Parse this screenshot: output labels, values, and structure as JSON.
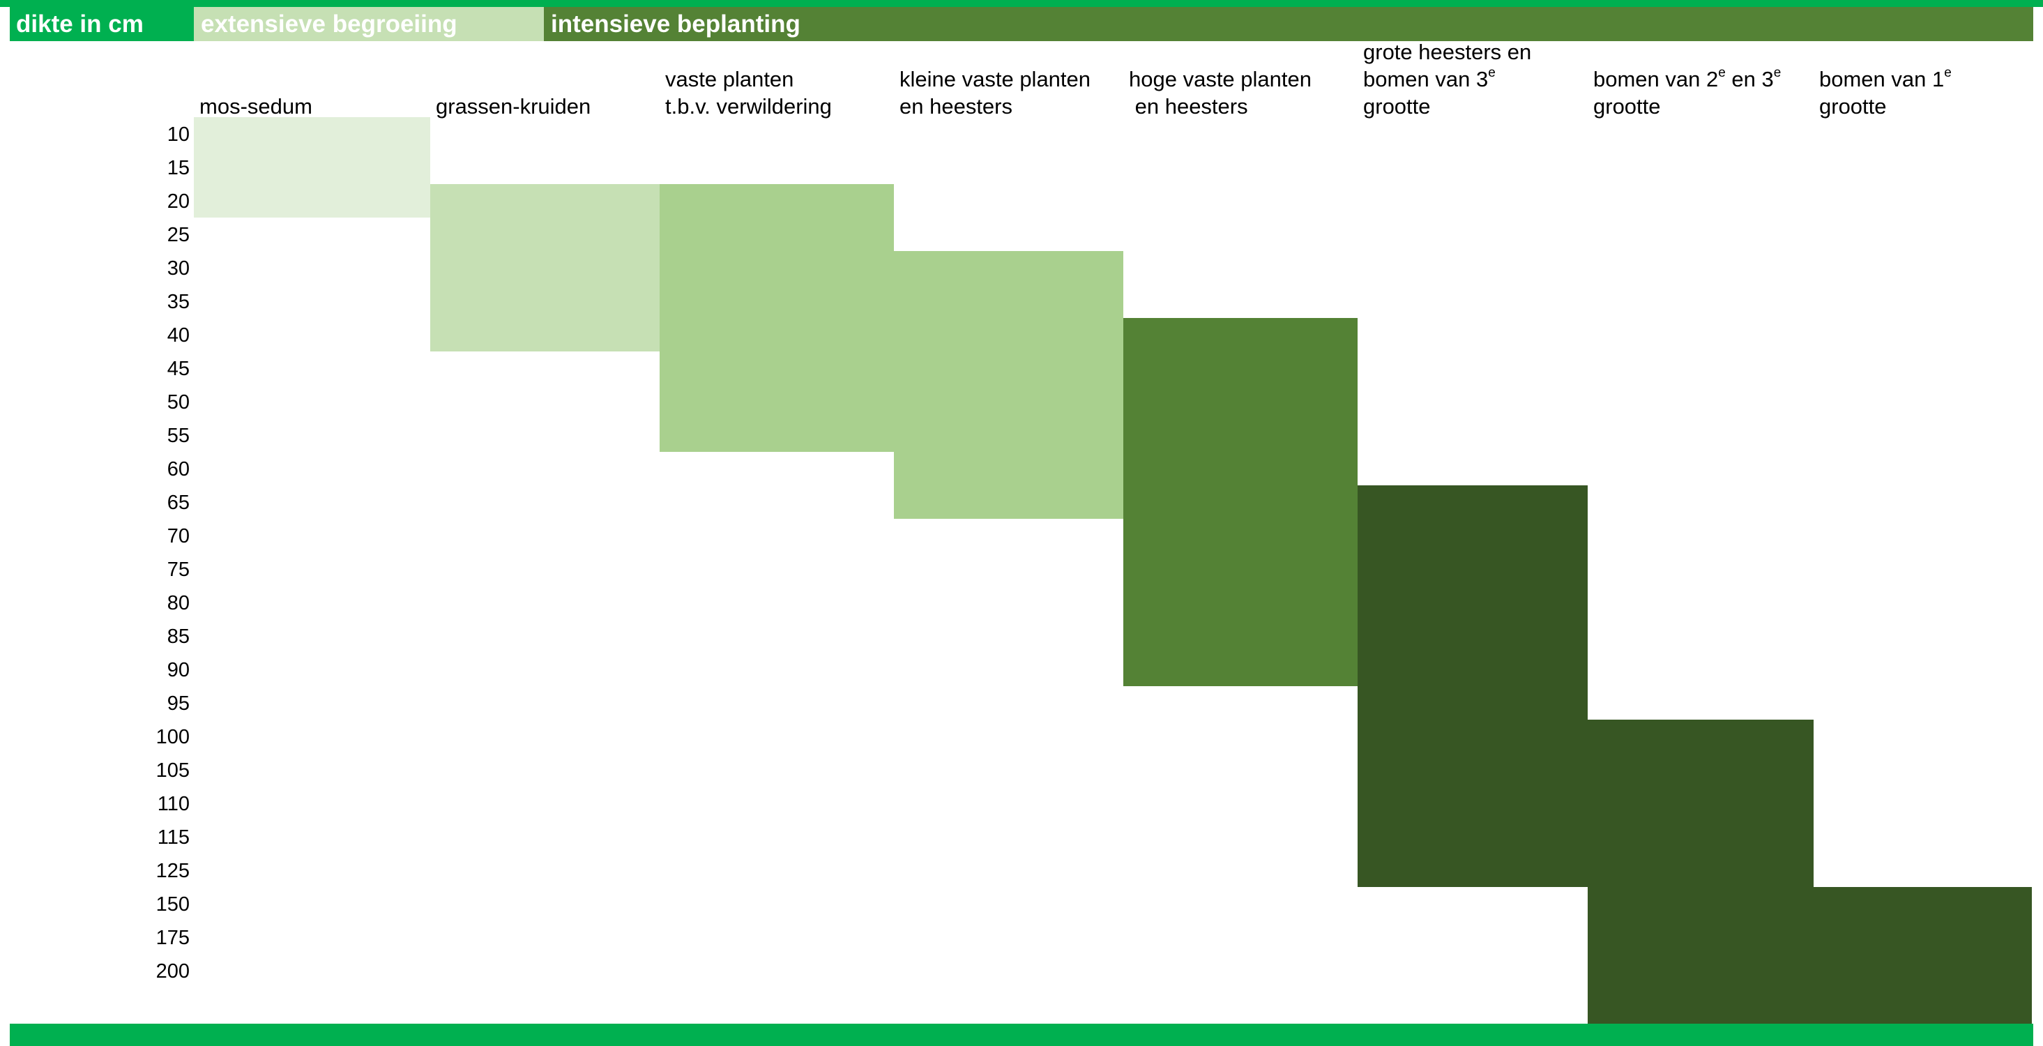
{
  "header": {
    "dikte_label": "dikte in cm",
    "extensieve_label": "extensieve begroeiing",
    "intensieve_label": "intensieve beplanting"
  },
  "colors": {
    "green_bar": "#00b050",
    "extensieve": "#c6e0b4",
    "intensieve": "#548235"
  },
  "chart_data": {
    "type": "table",
    "row_axis_label": "dikte in cm",
    "thickness_levels": [
      "10",
      "15",
      "20",
      "25",
      "30",
      "35",
      "40",
      "45",
      "50",
      "55",
      "60",
      "65",
      "70",
      "75",
      "80",
      "85",
      "90",
      "95",
      "100",
      "105",
      "110",
      "115",
      "125",
      "150",
      "175",
      "200"
    ],
    "groups": [
      {
        "name": "extensieve begroeiing",
        "columns": [
          "mos-sedum"
        ]
      },
      {
        "name": "intensieve beplanting",
        "columns": [
          "grassen-kruiden",
          "vaste planten t.b.v. verwildering",
          "kleine vaste planten en heesters",
          "hoge vaste planten en heesters",
          "grote heesters en bomen van 3e grootte",
          "bomen van 2e en 3e grootte",
          "bomen van 1e grootte"
        ]
      }
    ],
    "categories": [
      {
        "id": "mos-sedum",
        "label_lines": [
          [
            {
              "t": "mos-sedum"
            }
          ]
        ],
        "from_cm": 10,
        "to_cm": 20,
        "color": "#e2efda"
      },
      {
        "id": "grassen-kruiden",
        "label_lines": [
          [
            {
              "t": "grassen-kruiden"
            }
          ]
        ],
        "from_cm": 20,
        "to_cm": 40,
        "color": "#c6e0b4"
      },
      {
        "id": "vaste-planten-verwildering",
        "label_lines": [
          [
            {
              "t": "vaste planten"
            }
          ],
          [
            {
              "t": "t.b.v. verwildering"
            }
          ]
        ],
        "from_cm": 20,
        "to_cm": 55,
        "color": "#a9d08e"
      },
      {
        "id": "kleine-vaste-planten",
        "label_lines": [
          [
            {
              "t": "kleine vaste planten"
            }
          ],
          [
            {
              "t": "en heesters"
            }
          ]
        ],
        "from_cm": 30,
        "to_cm": 65,
        "color": "#a9d08e"
      },
      {
        "id": "hoge-vaste-planten",
        "label_lines": [
          [
            {
              "t": "hoge vaste planten"
            }
          ],
          [
            {
              "t": " en heesters"
            }
          ]
        ],
        "from_cm": 40,
        "to_cm": 90,
        "color": "#548235"
      },
      {
        "id": "grote-heesters",
        "label_lines": [
          [
            {
              "t": "grote heesters en"
            }
          ],
          [
            {
              "t": "bomen van 3"
            },
            {
              "t": "e",
              "sup": true
            }
          ],
          [
            {
              "t": "grootte"
            }
          ]
        ],
        "from_cm": 65,
        "to_cm": 125,
        "color": "#375623"
      },
      {
        "id": "bomen-2e-3e",
        "label_lines": [
          [
            {
              "t": "bomen van 2"
            },
            {
              "t": "e",
              "sup": true
            },
            {
              "t": " en 3"
            },
            {
              "t": "e",
              "sup": true
            }
          ],
          [
            {
              "t": "grootte"
            }
          ]
        ],
        "from_cm": 100,
        "to_cm": 200,
        "color": "#375623"
      },
      {
        "id": "bomen-1e",
        "label_lines": [
          [
            {
              "t": "bomen van 1"
            },
            {
              "t": "e",
              "sup": true
            }
          ],
          [
            {
              "t": "grootte"
            }
          ]
        ],
        "from_cm": 150,
        "to_cm": 200,
        "color": "#375623"
      }
    ]
  }
}
